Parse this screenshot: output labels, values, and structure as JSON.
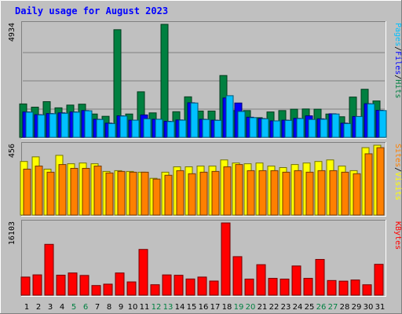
{
  "chart_data": [
    {
      "type": "bar",
      "title": "Daily usage for August 2023",
      "categories": [
        "1",
        "2",
        "3",
        "4",
        "5",
        "6",
        "7",
        "8",
        "9",
        "10",
        "11",
        "12",
        "13",
        "14",
        "15",
        "16",
        "17",
        "18",
        "19",
        "20",
        "21",
        "22",
        "23",
        "24",
        "25",
        "26",
        "27",
        "28",
        "29",
        "30",
        "31"
      ],
      "weekend_days": [
        "5",
        "6",
        "12",
        "13",
        "19",
        "20",
        "26",
        "27"
      ],
      "ylabel_max": "4934",
      "ylim": [
        0,
        4934
      ],
      "ylabel_parts": [
        "Pages",
        "/",
        "Files",
        "/",
        "Hits"
      ],
      "grid": true,
      "series": [
        {
          "name": "Hits",
          "color": "#008040",
          "values": [
            1460,
            1320,
            1560,
            1290,
            1410,
            1450,
            1020,
            920,
            4700,
            1020,
            1990,
            1070,
            4934,
            1120,
            1770,
            1150,
            1150,
            2700,
            1170,
            1170,
            860,
            1110,
            1170,
            1230,
            1240,
            1230,
            1020,
            900,
            1760,
            2100,
            1590
          ]
        },
        {
          "name": "Files",
          "color": "#0000ff",
          "values": [
            1110,
            990,
            1040,
            1070,
            1110,
            1170,
            790,
            620,
            940,
            750,
            980,
            790,
            700,
            760,
            1510,
            790,
            750,
            1720,
            1500,
            880,
            820,
            720,
            750,
            830,
            940,
            810,
            1030,
            620,
            910,
            1470,
            1180
          ]
        },
        {
          "name": "Pages",
          "color": "#00c0ff",
          "values": [
            1100,
            980,
            1030,
            1050,
            1100,
            1160,
            780,
            600,
            930,
            750,
            810,
            790,
            690,
            750,
            1500,
            780,
            740,
            1820,
            1130,
            860,
            810,
            720,
            740,
            820,
            780,
            790,
            1020,
            600,
            910,
            1460,
            1170
          ]
        }
      ]
    },
    {
      "type": "bar",
      "categories": [
        "1",
        "2",
        "3",
        "4",
        "5",
        "6",
        "7",
        "8",
        "9",
        "10",
        "11",
        "12",
        "13",
        "14",
        "15",
        "16",
        "17",
        "18",
        "19",
        "20",
        "21",
        "22",
        "23",
        "24",
        "25",
        "26",
        "27",
        "28",
        "29",
        "30",
        "31"
      ],
      "ylabel_max": "456",
      "ylim": [
        0,
        456
      ],
      "ylabel_parts": [
        "Sites",
        "/",
        "Visits"
      ],
      "series": [
        {
          "name": "Visits",
          "color": "#ffff00",
          "values": [
            350,
            380,
            300,
            390,
            335,
            340,
            335,
            285,
            290,
            285,
            280,
            240,
            280,
            315,
            315,
            320,
            320,
            360,
            340,
            335,
            340,
            320,
            310,
            330,
            340,
            350,
            360,
            320,
            290,
            440,
            456
          ]
        },
        {
          "name": "Sites",
          "color": "#ff8000",
          "values": [
            300,
            320,
            280,
            330,
            305,
            305,
            320,
            275,
            285,
            280,
            280,
            235,
            260,
            290,
            270,
            280,
            285,
            315,
            330,
            290,
            290,
            290,
            280,
            290,
            280,
            290,
            290,
            280,
            270,
            400,
            440
          ]
        }
      ]
    },
    {
      "type": "bar",
      "categories": [
        "1",
        "2",
        "3",
        "4",
        "5",
        "6",
        "7",
        "8",
        "9",
        "10",
        "11",
        "12",
        "13",
        "14",
        "15",
        "16",
        "17",
        "18",
        "19",
        "20",
        "21",
        "22",
        "23",
        "24",
        "25",
        "26",
        "27",
        "28",
        "29",
        "30",
        "31"
      ],
      "ylabel_max": "16103",
      "ylim": [
        0,
        16103
      ],
      "ylabel_parts": [
        "KBytes"
      ],
      "series": [
        {
          "name": "KBytes",
          "color": "#ff0000",
          "values": [
            4040,
            4530,
            11330,
            4460,
            4950,
            4400,
            2150,
            2460,
            4950,
            2960,
            10200,
            2330,
            4520,
            4440,
            3610,
            4040,
            3150,
            16103,
            8590,
            3590,
            6800,
            3750,
            3590,
            6510,
            3750,
            7970,
            3270,
            3130,
            3380,
            2320,
            6880
          ]
        }
      ]
    }
  ],
  "colors": {
    "background": "#c0c0c0",
    "plot_bg": "#c0c0c0",
    "title": "#0000ff",
    "weekend_label": "#008040",
    "weekday_label": "#000000"
  }
}
